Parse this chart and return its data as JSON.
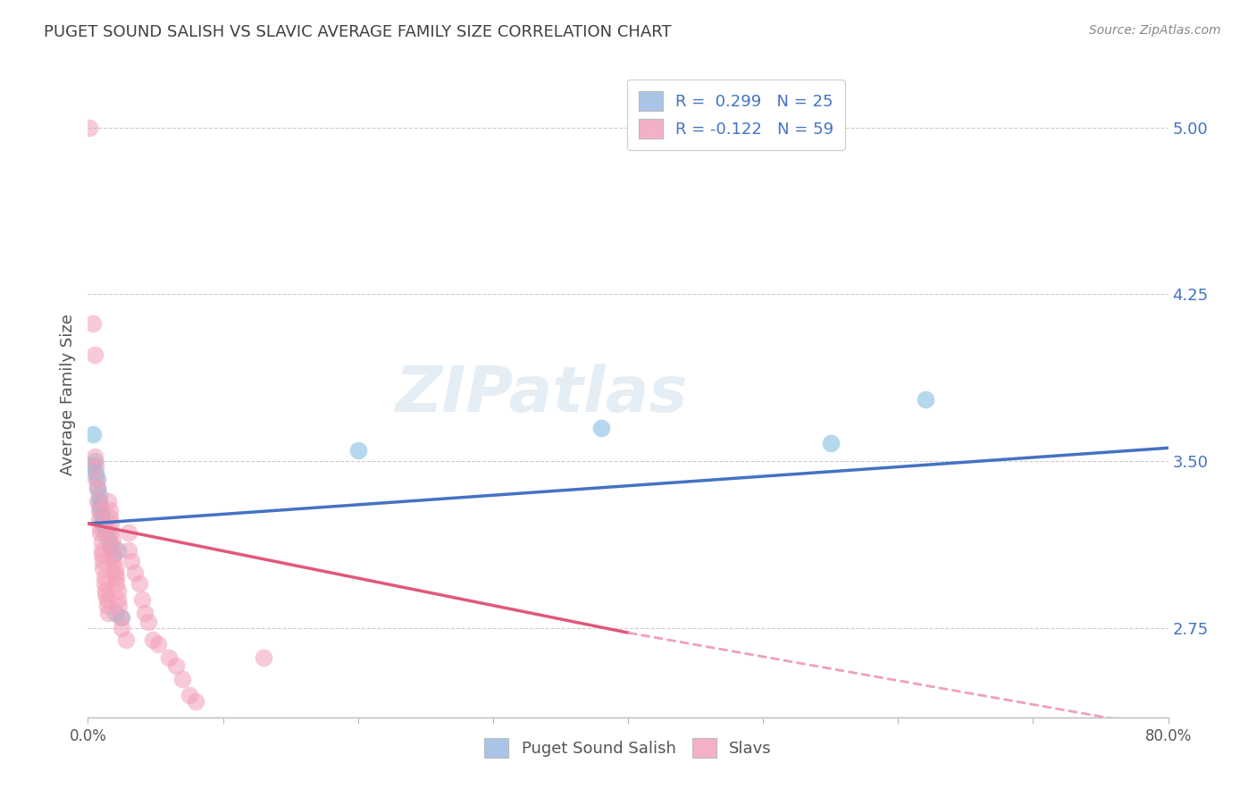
{
  "title": "PUGET SOUND SALISH VS SLAVIC AVERAGE FAMILY SIZE CORRELATION CHART",
  "source": "Source: ZipAtlas.com",
  "ylabel": "Average Family Size",
  "xlim": [
    0.0,
    0.8
  ],
  "ylim": [
    2.35,
    5.25
  ],
  "yticks": [
    2.75,
    3.5,
    4.25,
    5.0
  ],
  "ytick_labels": [
    "2.75",
    "3.50",
    "4.25",
    "5.00"
  ],
  "legend_items": [
    {
      "label": "R =  0.299   N = 25",
      "facecolor": "#aac4e8"
    },
    {
      "label": "R = -0.122   N = 59",
      "facecolor": "#f4b0c4"
    }
  ],
  "blue_dot_color": "#7ab8e0",
  "pink_dot_color": "#f4a0b8",
  "blue_line_color": "#4472c4",
  "pink_line_color": "#e05878",
  "pink_dash_color": "#f0a0b8",
  "watermark": "ZIPatlas",
  "blue_scatter": [
    [
      0.003,
      3.48
    ],
    [
      0.004,
      3.62
    ],
    [
      0.005,
      3.5
    ],
    [
      0.006,
      3.45
    ],
    [
      0.007,
      3.42
    ],
    [
      0.007,
      3.38
    ],
    [
      0.008,
      3.35
    ],
    [
      0.008,
      3.32
    ],
    [
      0.009,
      3.3
    ],
    [
      0.009,
      3.28
    ],
    [
      0.01,
      3.26
    ],
    [
      0.01,
      3.25
    ],
    [
      0.011,
      3.22
    ],
    [
      0.012,
      3.2
    ],
    [
      0.013,
      3.18
    ],
    [
      0.015,
      3.15
    ],
    [
      0.016,
      3.12
    ],
    [
      0.018,
      3.08
    ],
    [
      0.02,
      2.82
    ],
    [
      0.022,
      3.1
    ],
    [
      0.025,
      2.8
    ],
    [
      0.2,
      3.55
    ],
    [
      0.38,
      3.65
    ],
    [
      0.55,
      3.58
    ],
    [
      0.62,
      3.78
    ]
  ],
  "pink_scatter": [
    [
      0.001,
      5.0
    ],
    [
      0.004,
      4.12
    ],
    [
      0.005,
      3.98
    ],
    [
      0.005,
      3.52
    ],
    [
      0.006,
      3.48
    ],
    [
      0.006,
      3.42
    ],
    [
      0.007,
      3.38
    ],
    [
      0.007,
      3.32
    ],
    [
      0.008,
      3.28
    ],
    [
      0.008,
      3.24
    ],
    [
      0.009,
      3.2
    ],
    [
      0.009,
      3.18
    ],
    [
      0.01,
      3.14
    ],
    [
      0.01,
      3.1
    ],
    [
      0.01,
      3.08
    ],
    [
      0.011,
      3.05
    ],
    [
      0.011,
      3.02
    ],
    [
      0.012,
      2.98
    ],
    [
      0.012,
      2.95
    ],
    [
      0.013,
      2.92
    ],
    [
      0.013,
      2.9
    ],
    [
      0.014,
      2.88
    ],
    [
      0.014,
      2.85
    ],
    [
      0.015,
      2.82
    ],
    [
      0.015,
      3.32
    ],
    [
      0.016,
      3.28
    ],
    [
      0.016,
      3.25
    ],
    [
      0.017,
      3.22
    ],
    [
      0.017,
      3.18
    ],
    [
      0.018,
      3.15
    ],
    [
      0.018,
      3.12
    ],
    [
      0.019,
      3.08
    ],
    [
      0.019,
      3.05
    ],
    [
      0.02,
      3.02
    ],
    [
      0.02,
      3.0
    ],
    [
      0.021,
      2.98
    ],
    [
      0.021,
      2.95
    ],
    [
      0.022,
      2.92
    ],
    [
      0.022,
      2.88
    ],
    [
      0.023,
      2.85
    ],
    [
      0.024,
      2.8
    ],
    [
      0.025,
      2.75
    ],
    [
      0.028,
      2.7
    ],
    [
      0.03,
      3.18
    ],
    [
      0.03,
      3.1
    ],
    [
      0.032,
      3.05
    ],
    [
      0.035,
      3.0
    ],
    [
      0.038,
      2.95
    ],
    [
      0.04,
      2.88
    ],
    [
      0.042,
      2.82
    ],
    [
      0.045,
      2.78
    ],
    [
      0.048,
      2.7
    ],
    [
      0.052,
      2.68
    ],
    [
      0.06,
      2.62
    ],
    [
      0.065,
      2.58
    ],
    [
      0.07,
      2.52
    ],
    [
      0.075,
      2.45
    ],
    [
      0.08,
      2.42
    ],
    [
      0.13,
      2.62
    ]
  ],
  "blue_line": {
    "x0": 0.0,
    "x1": 0.8,
    "y0": 3.22,
    "y1": 3.56
  },
  "pink_solid_line": {
    "x0": 0.0,
    "x1": 0.4,
    "y0": 3.22,
    "y1": 2.73
  },
  "pink_dash_line": {
    "x0": 0.4,
    "x1": 0.8,
    "y0": 2.73,
    "y1": 2.3
  },
  "background_color": "#ffffff",
  "grid_color": "#cccccc",
  "axis_color": "#bbbbbb",
  "right_tick_color": "#4472c4",
  "title_color": "#404040",
  "source_color": "#888888",
  "bottom_legend": [
    {
      "label": "Puget Sound Salish",
      "facecolor": "#aac4e8"
    },
    {
      "label": "Slavs",
      "facecolor": "#f4b0c4"
    }
  ]
}
